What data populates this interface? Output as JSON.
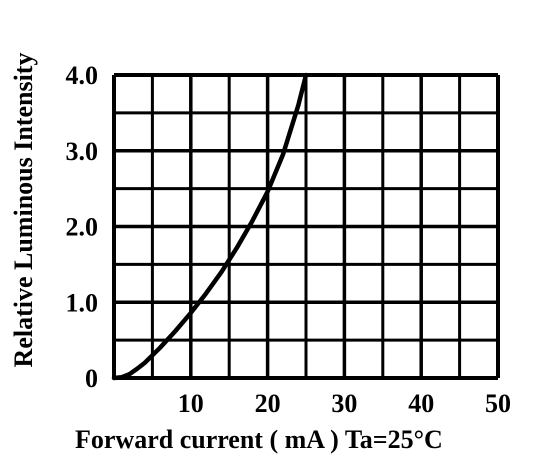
{
  "chart_data": {
    "type": "line",
    "xlabel": "Forward current ( mA ) Ta=25°C",
    "ylabel": "Relative Luminous Intensity",
    "xlim": [
      0,
      50
    ],
    "ylim": [
      0,
      4
    ],
    "grid": true,
    "x_ticks": [
      10,
      20,
      30,
      40,
      50
    ],
    "x_tick_labels": [
      "10",
      "20",
      "30",
      "40",
      "50"
    ],
    "y_ticks": [
      0,
      1,
      2,
      3,
      4
    ],
    "y_tick_labels": [
      "0",
      "1.0",
      "2.0",
      "3.0",
      "4.0"
    ],
    "series": [
      {
        "x": [
          0,
          1,
          2,
          3,
          4,
          5,
          6,
          8,
          10,
          12,
          14,
          16,
          18,
          20,
          22,
          24,
          25
        ],
        "y": [
          0,
          0.01,
          0.05,
          0.12,
          0.2,
          0.3,
          0.4,
          0.62,
          0.86,
          1.12,
          1.4,
          1.72,
          2.07,
          2.46,
          2.95,
          3.6,
          4.0
        ]
      }
    ],
    "color": "#000000"
  }
}
